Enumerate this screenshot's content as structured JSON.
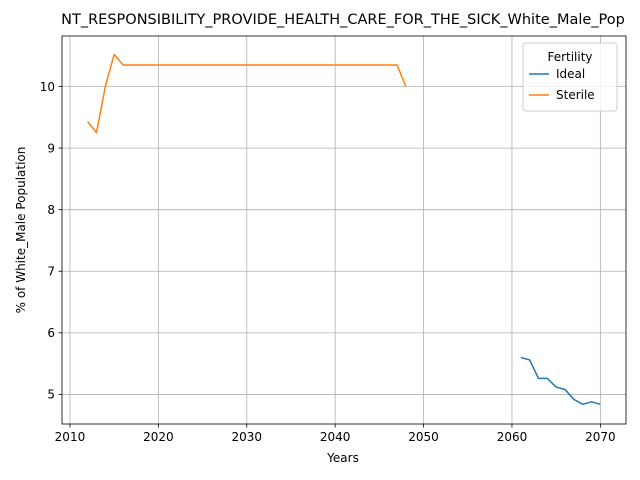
{
  "chart_data": {
    "type": "line",
    "title": "NT_RESPONSIBILITY_PROVIDE_HEALTH_CARE_FOR_THE_SICK_White_Male_Pop",
    "xlabel": "Years",
    "ylabel": "% of White_Male Population",
    "xlim": [
      2009.1,
      2072.9
    ],
    "ylim": [
      4.52,
      10.82
    ],
    "xticks": [
      2010,
      2020,
      2030,
      2040,
      2050,
      2060,
      2070
    ],
    "yticks": [
      5,
      6,
      7,
      8,
      9,
      10
    ],
    "grid": true,
    "legend": {
      "title": "Fertility",
      "placement": "upper-right",
      "entries": [
        "Ideal",
        "Sterile"
      ]
    },
    "series": [
      {
        "name": "Ideal",
        "color": "#1f77b4",
        "x": [
          2061,
          2062,
          2063,
          2064,
          2065,
          2066,
          2067,
          2068,
          2069,
          2070
        ],
        "y": [
          5.6,
          5.56,
          5.26,
          5.26,
          5.12,
          5.08,
          4.92,
          4.84,
          4.88,
          4.84
        ]
      },
      {
        "name": "Sterile",
        "color": "#ff7f0e",
        "x": [
          2012,
          2013,
          2014,
          2015,
          2016,
          2017,
          2018,
          2019,
          2020,
          2021,
          2022,
          2023,
          2024,
          2025,
          2026,
          2027,
          2028,
          2029,
          2030,
          2031,
          2032,
          2033,
          2034,
          2035,
          2036,
          2037,
          2038,
          2039,
          2040,
          2041,
          2042,
          2043,
          2044,
          2045,
          2046,
          2047,
          2048
        ],
        "y": [
          9.43,
          9.25,
          10.0,
          10.52,
          10.35,
          10.35,
          10.35,
          10.35,
          10.35,
          10.35,
          10.35,
          10.35,
          10.35,
          10.35,
          10.35,
          10.35,
          10.35,
          10.35,
          10.35,
          10.35,
          10.35,
          10.35,
          10.35,
          10.35,
          10.35,
          10.35,
          10.35,
          10.35,
          10.35,
          10.35,
          10.35,
          10.35,
          10.35,
          10.35,
          10.35,
          10.35,
          10.0
        ]
      }
    ]
  }
}
